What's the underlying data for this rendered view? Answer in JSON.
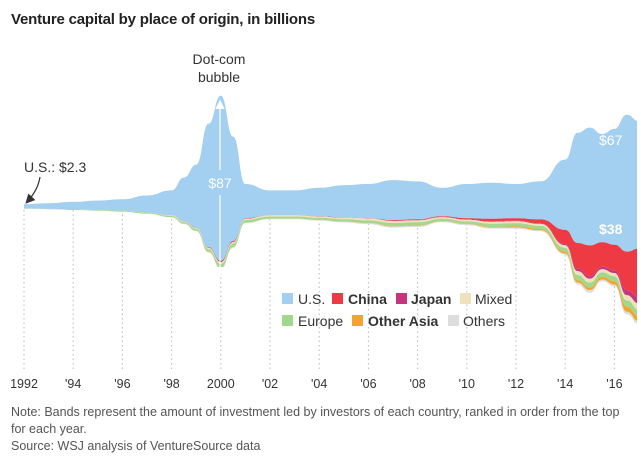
{
  "title": "Venture capital by place of origin, in billions",
  "notes": {
    "note": "Note: Bands represent the amount of investment led by investors of each country, ranked in order from the top for each year.",
    "source": "Source: WSJ analysis of VentureSource data"
  },
  "annotations": {
    "us_start": "U.S.: $2.3",
    "dotcom_line1": "Dot-com",
    "dotcom_line2": "bubble",
    "us_peak": "$87",
    "us_2017": "$67",
    "china_2017": "$38"
  },
  "legend": [
    {
      "label": "U.S.",
      "color": "#a3cff0",
      "bold": false
    },
    {
      "label": "China",
      "color": "#ee3a43",
      "bold": true
    },
    {
      "label": "Japan",
      "color": "#c8357f",
      "bold": true
    },
    {
      "label": "Mixed",
      "color": "#f0e1bd",
      "bold": false
    },
    {
      "label": "Europe",
      "color": "#a1d88b",
      "bold": false
    },
    {
      "label": "Other Asia",
      "color": "#f4a42c",
      "bold": true
    },
    {
      "label": "Others",
      "color": "#dddddd",
      "bold": false
    }
  ],
  "chart_data": {
    "type": "area",
    "subtype": "streamgraph",
    "title": "Venture capital by place of origin, in billions",
    "x_tick_labels": [
      "1992",
      "'94",
      "'96",
      "'98",
      "2000",
      "'02",
      "'04",
      "'06",
      "'08",
      "'10",
      "'12",
      "'14",
      "'16"
    ],
    "x_range": [
      1992,
      2017
    ],
    "x": [
      1992,
      1993,
      1994,
      1995,
      1996,
      1997,
      1998,
      1998.5,
      1999,
      1999.5,
      2000,
      2000.5,
      2001,
      2002,
      2003,
      2004,
      2005,
      2006,
      2007,
      2008,
      2009,
      2010,
      2011,
      2012,
      2013,
      2014,
      2014.5,
      2015,
      2015.5,
      2016,
      2016.5,
      2017
    ],
    "series": [
      {
        "name": "U.S.",
        "values": [
          2.3,
          3,
          4,
          5,
          6,
          9,
          13,
          23,
          33,
          65,
          87,
          55,
          18,
          13,
          13,
          15,
          17,
          18,
          21,
          20,
          15,
          18,
          19,
          18,
          20,
          37,
          58,
          62,
          57,
          61,
          72,
          67
        ]
      },
      {
        "name": "China",
        "values": [
          0,
          0,
          0,
          0,
          0,
          0,
          0,
          0,
          0,
          0,
          0,
          0,
          0,
          0,
          0,
          0,
          0,
          0,
          0.5,
          0.5,
          0.5,
          1,
          2,
          2,
          3,
          11,
          20,
          24,
          19,
          20,
          30,
          38
        ]
      },
      {
        "name": "Japan",
        "values": [
          0,
          0,
          0,
          0,
          0,
          0,
          0.2,
          0.2,
          0.3,
          0.5,
          1,
          0.8,
          0.4,
          0.2,
          0.2,
          0.2,
          0.2,
          0.3,
          0.3,
          0.3,
          0.3,
          0.3,
          0.4,
          0.4,
          0.5,
          1,
          2,
          2,
          2,
          2,
          4,
          5
        ]
      },
      {
        "name": "Mixed",
        "values": [
          0,
          0,
          0,
          0,
          0,
          0,
          0.5,
          0.5,
          0.7,
          1,
          1.5,
          1.2,
          1,
          1,
          1,
          1,
          1.2,
          1.5,
          1.5,
          1.5,
          1,
          1.2,
          1.5,
          1.5,
          1.5,
          2,
          3,
          3,
          2.5,
          2.5,
          4,
          5
        ]
      },
      {
        "name": "Europe",
        "values": [
          0.3,
          0.3,
          0.4,
          0.5,
          0.7,
          0.8,
          1,
          1.2,
          1.6,
          2,
          3,
          2.5,
          2,
          1.6,
          1.5,
          1.6,
          1.8,
          2,
          2.5,
          2.5,
          2,
          2,
          2.5,
          2.5,
          2.5,
          3,
          4,
          4,
          3.5,
          4,
          5,
          5
        ]
      },
      {
        "name": "Other Asia",
        "values": [
          0,
          0,
          0,
          0,
          0,
          0,
          0,
          0,
          0,
          0.1,
          0.2,
          0.2,
          0.1,
          0.1,
          0.1,
          0.1,
          0.1,
          0.2,
          0.3,
          0.3,
          0.3,
          0.3,
          0.5,
          1,
          1,
          1.5,
          2,
          2,
          2,
          2.5,
          4,
          4
        ]
      },
      {
        "name": "Others",
        "values": [
          0,
          0,
          0,
          0,
          0,
          0,
          0.2,
          0.3,
          0.4,
          0.6,
          1,
          0.8,
          0.5,
          0.4,
          0.4,
          0.5,
          0.6,
          0.7,
          0.8,
          0.8,
          0.6,
          0.7,
          0.8,
          0.8,
          0.8,
          1,
          1.5,
          2,
          1.5,
          1.5,
          2,
          2
        ]
      }
    ],
    "labels": {
      "us_1992": 2.3,
      "us_2000_peak": 87,
      "us_2017": 67,
      "china_2017": 38
    },
    "grid": "dotted vertical lines at labeled years",
    "legend_placement": "center-right"
  }
}
